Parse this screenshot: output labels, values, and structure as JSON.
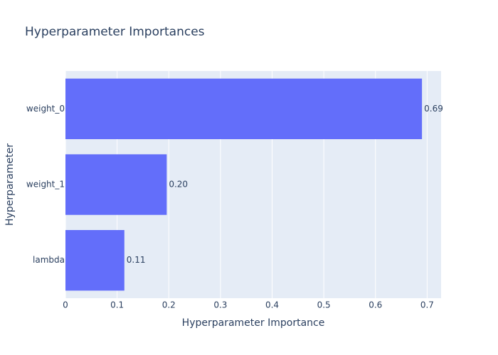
{
  "chart_data": {
    "type": "bar",
    "orientation": "horizontal",
    "title": "Hyperparameter Importances",
    "x_label": "Hyperparameter Importance",
    "y_label": "Hyperparameter",
    "categories": [
      "weight_0",
      "weight_1",
      "lambda"
    ],
    "values": [
      0.69,
      0.196,
      0.114
    ],
    "value_labels": [
      "0.69",
      "0.20",
      "0.11"
    ],
    "color": "#636efa",
    "xlim": [
      0,
      0.727
    ],
    "xticks": [
      0,
      0.1,
      0.2,
      0.3,
      0.4,
      0.5,
      0.6,
      0.7
    ],
    "grid": true
  }
}
